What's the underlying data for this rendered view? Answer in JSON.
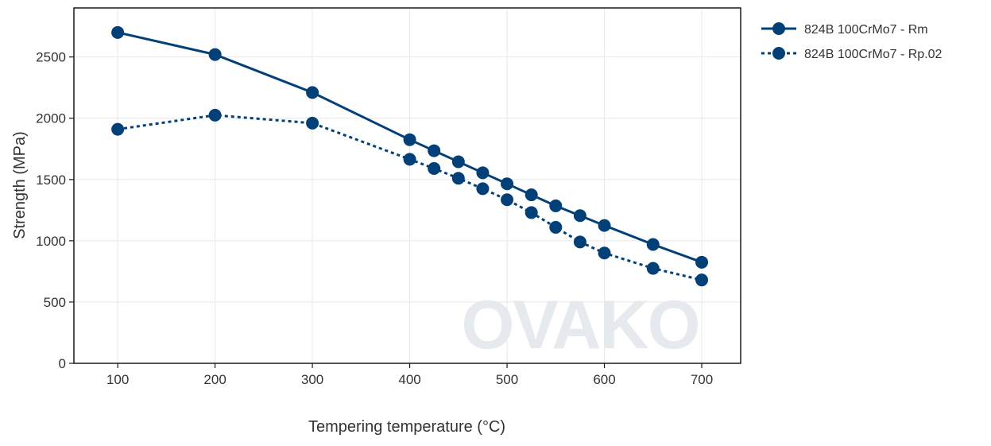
{
  "watermark": "OVAKO",
  "chart_data": {
    "type": "line",
    "xlabel": "Tempering temperature (°C)",
    "ylabel": "Strength (MPa)",
    "xlim": [
      55,
      740
    ],
    "ylim": [
      0,
      2900
    ],
    "xticks": [
      100,
      200,
      300,
      400,
      500,
      600,
      700
    ],
    "yticks": [
      0,
      500,
      1000,
      1500,
      2000,
      2500
    ],
    "grid": true,
    "legend_position": "outside-top-right",
    "color": "#034078",
    "series": [
      {
        "name": "824B 100CrMo7 - Rm",
        "line_style": "solid",
        "x": [
          100,
          200,
          300,
          400,
          425,
          450,
          475,
          500,
          525,
          550,
          575,
          600,
          650,
          700
        ],
        "y": [
          2700,
          2520,
          2210,
          1825,
          1735,
          1645,
          1555,
          1465,
          1375,
          1285,
          1205,
          1125,
          970,
          825
        ]
      },
      {
        "name": "824B 100CrMo7 - Rp.02",
        "line_style": "dotted",
        "x": [
          100,
          200,
          300,
          400,
          425,
          450,
          475,
          500,
          525,
          550,
          575,
          600,
          650,
          700
        ],
        "y": [
          1910,
          2025,
          1960,
          1665,
          1590,
          1510,
          1425,
          1335,
          1230,
          1110,
          990,
          900,
          775,
          680
        ]
      }
    ]
  }
}
